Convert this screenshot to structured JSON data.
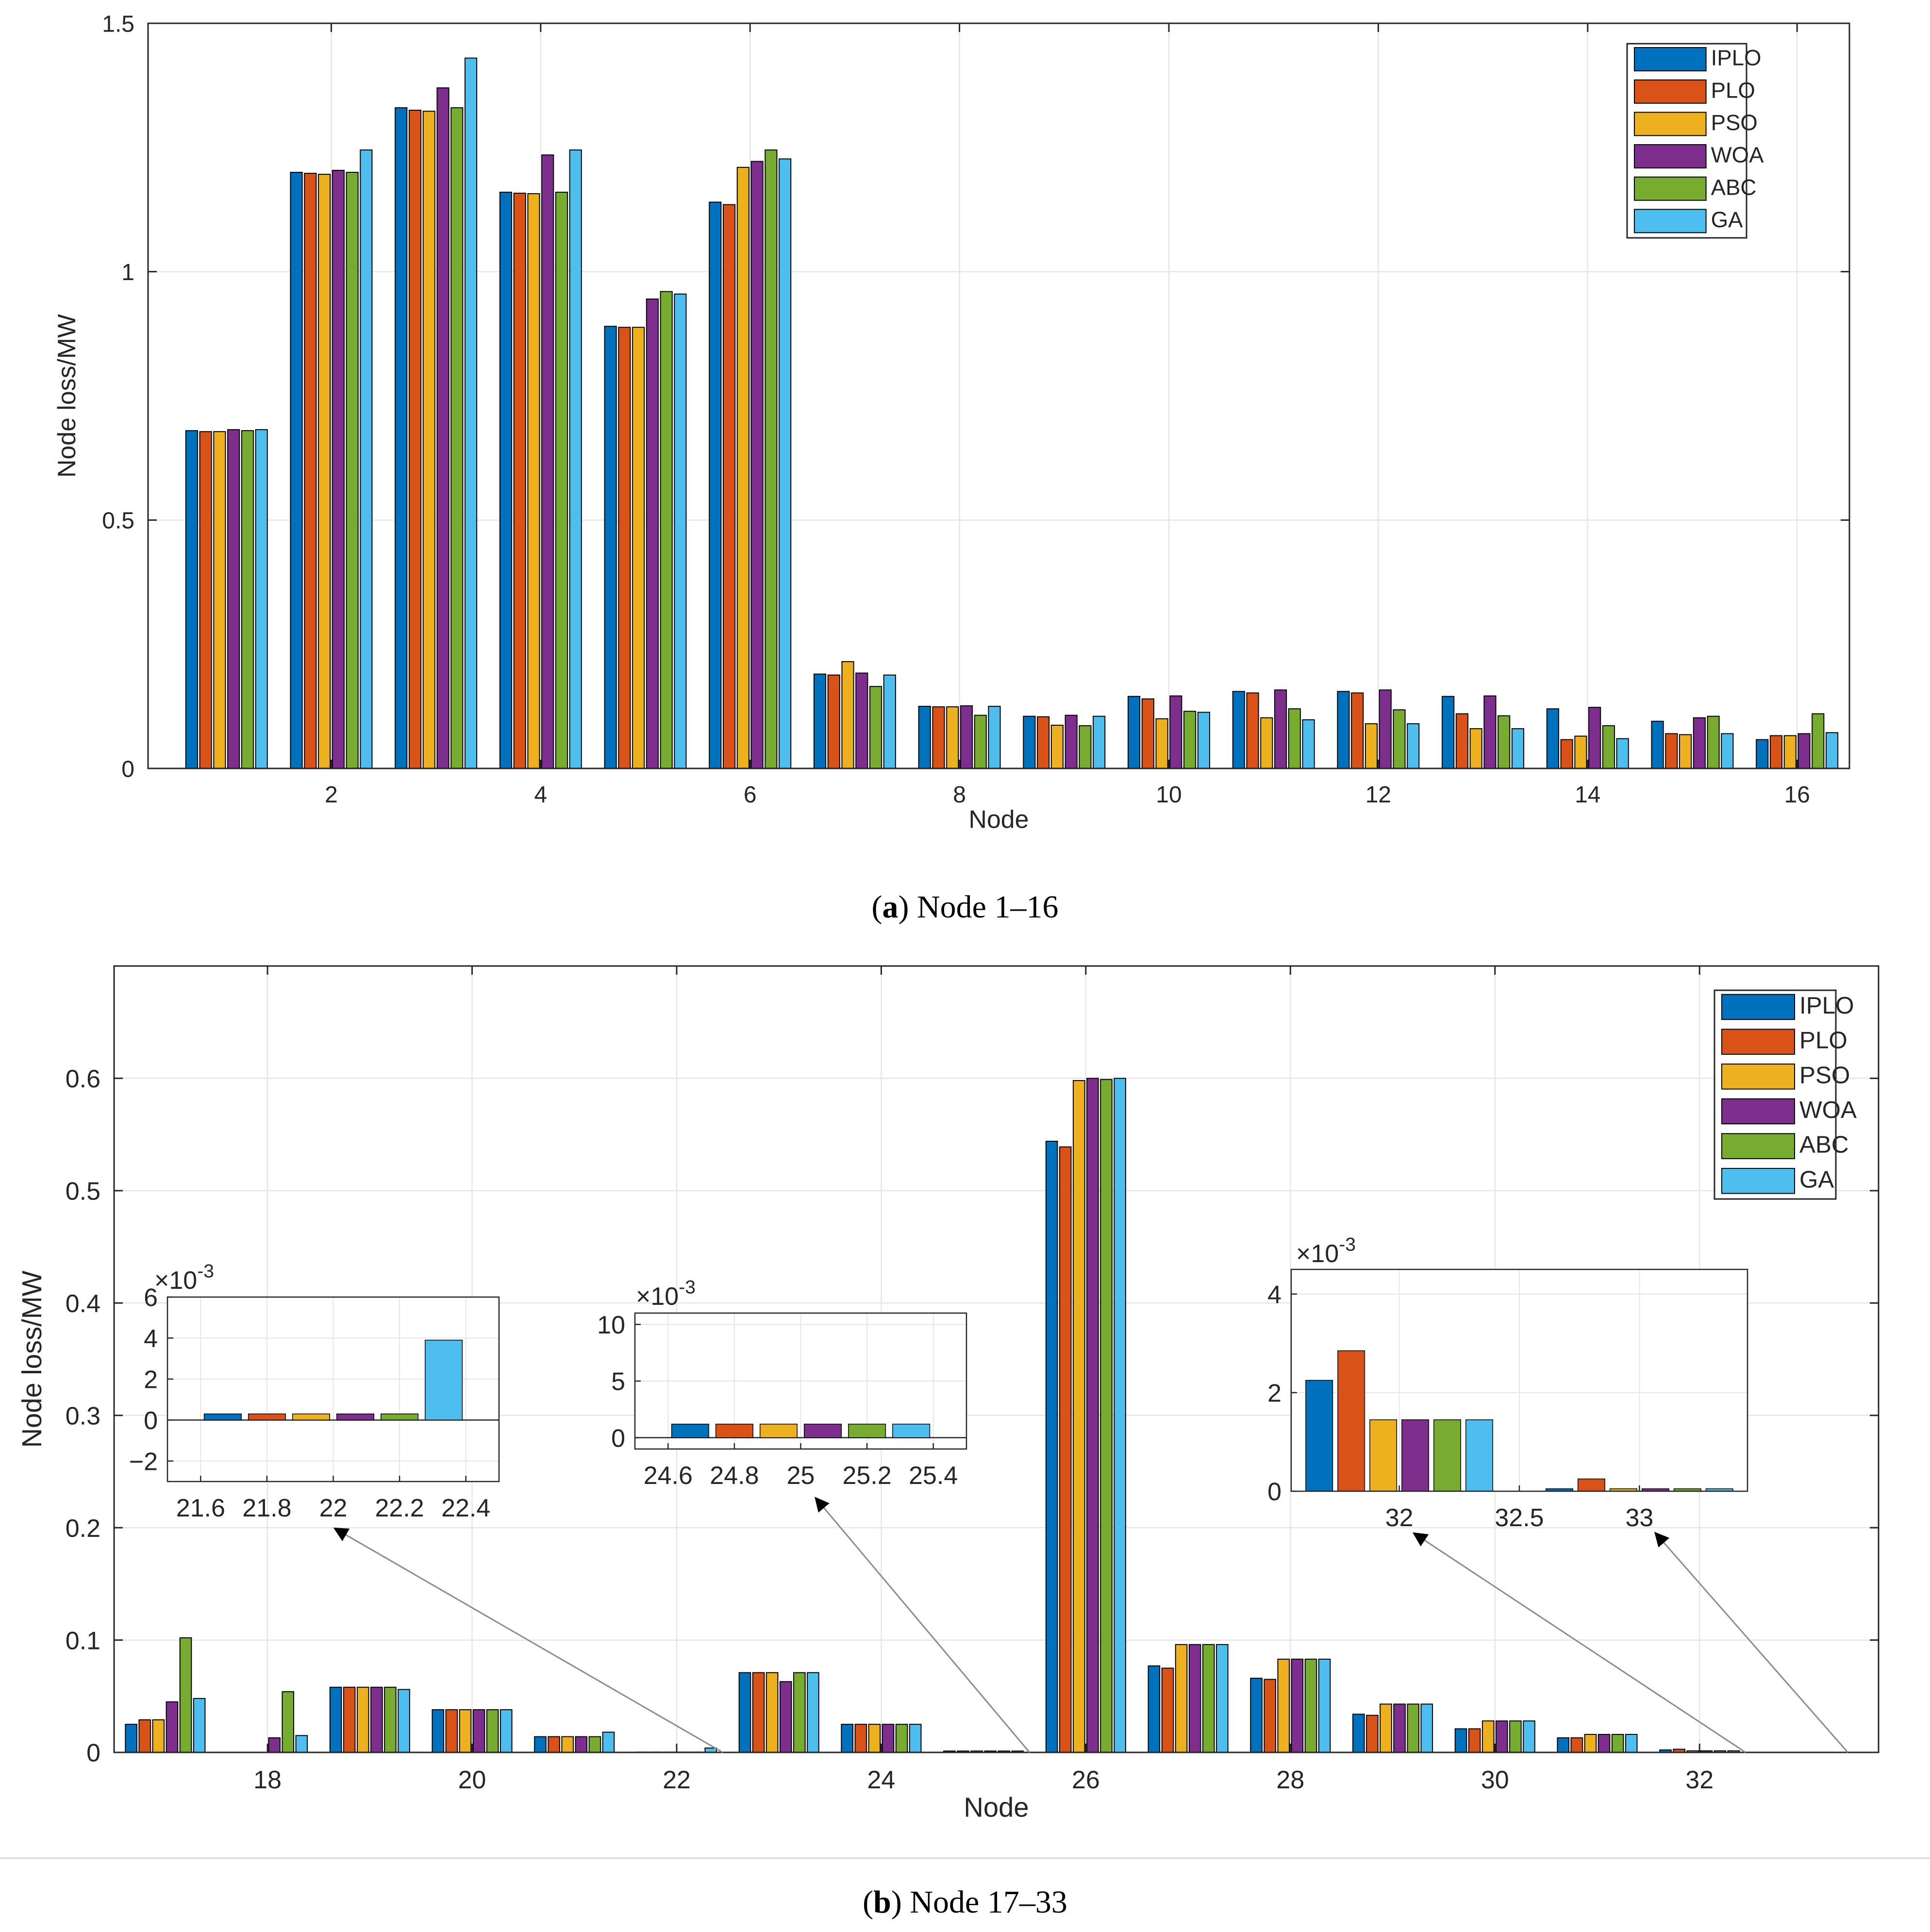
{
  "colors": {
    "IPLO": "#0072BD",
    "PLO": "#D95319",
    "PSO": "#EDB120",
    "WOA": "#7E2F8E",
    "ABC": "#77AC30",
    "GA": "#4DBEEE"
  },
  "captions": {
    "a_letter": "a",
    "a_text": "Node 1–16",
    "b_letter": "b",
    "b_text": "Node 17–33"
  },
  "chart_data": [
    {
      "id": "a",
      "type": "bar",
      "title": "",
      "xlabel": "Node",
      "ylabel": "Node loss/MW",
      "x": [
        1,
        2,
        3,
        4,
        5,
        6,
        7,
        8,
        9,
        10,
        11,
        12,
        13,
        14,
        15,
        16
      ],
      "xlim": [
        0.25,
        16.5
      ],
      "ylim": [
        0,
        1.5
      ],
      "yticks": [
        0,
        0.5,
        1,
        1.5
      ],
      "ytick_labels": [
        "0",
        "0.5",
        "1",
        "1.5"
      ],
      "xticks": [
        2,
        4,
        6,
        8,
        10,
        12,
        14,
        16
      ],
      "xtick_labels": [
        "2",
        "4",
        "6",
        "8",
        "10",
        "12",
        "14",
        "16"
      ],
      "grid": true,
      "legend_position": "top-right",
      "series": [
        {
          "name": "IPLO",
          "values": [
            0.68,
            1.2,
            1.33,
            1.16,
            0.89,
            1.14,
            0.19,
            0.125,
            0.105,
            0.145,
            0.155,
            0.155,
            0.145,
            0.12,
            0.095,
            0.058
          ]
        },
        {
          "name": "PLO",
          "values": [
            0.678,
            1.198,
            1.325,
            1.158,
            0.888,
            1.135,
            0.188,
            0.124,
            0.104,
            0.14,
            0.152,
            0.152,
            0.11,
            0.058,
            0.07,
            0.066
          ]
        },
        {
          "name": "PSO",
          "values": [
            0.678,
            1.196,
            1.323,
            1.157,
            0.888,
            1.21,
            0.215,
            0.124,
            0.087,
            0.1,
            0.102,
            0.09,
            0.08,
            0.065,
            0.068,
            0.066
          ]
        },
        {
          "name": "WOA",
          "values": [
            0.682,
            1.204,
            1.37,
            1.235,
            0.945,
            1.222,
            0.192,
            0.126,
            0.107,
            0.146,
            0.158,
            0.158,
            0.146,
            0.123,
            0.102,
            0.07
          ]
        },
        {
          "name": "ABC",
          "values": [
            0.68,
            1.2,
            1.33,
            1.16,
            0.96,
            1.245,
            0.165,
            0.107,
            0.086,
            0.115,
            0.12,
            0.118,
            0.106,
            0.086,
            0.105,
            0.11
          ]
        },
        {
          "name": "GA",
          "values": [
            0.682,
            1.245,
            1.43,
            1.245,
            0.955,
            1.227,
            0.188,
            0.125,
            0.105,
            0.113,
            0.098,
            0.09,
            0.08,
            0.06,
            0.07,
            0.072
          ]
        }
      ]
    },
    {
      "id": "b",
      "type": "bar",
      "title": "",
      "xlabel": "Node",
      "ylabel": "Node loss/MW",
      "x": [
        17,
        18,
        19,
        20,
        21,
        22,
        23,
        24,
        25,
        26,
        27,
        28,
        29,
        30,
        31,
        32,
        33
      ],
      "xlim": [
        16.5,
        33.75
      ],
      "ylim": [
        0,
        0.7
      ],
      "yticks": [
        0,
        0.1,
        0.2,
        0.3,
        0.4,
        0.5,
        0.6
      ],
      "ytick_labels": [
        "0",
        "0.1",
        "0.2",
        "0.3",
        "0.4",
        "0.5",
        "0.6"
      ],
      "xticks": [
        18,
        20,
        22,
        24,
        26,
        28,
        30,
        32
      ],
      "xtick_labels": [
        "18",
        "20",
        "22",
        "24",
        "26",
        "28",
        "30",
        "32"
      ],
      "grid": true,
      "legend_position": "top-right",
      "series": [
        {
          "name": "IPLO",
          "values": [
            0.025,
            0.0,
            0.058,
            0.038,
            0.014,
            0.0003,
            0.071,
            0.025,
            0.0012,
            0.544,
            0.077,
            0.066,
            0.034,
            0.021,
            0.013,
            0.0022,
            5e-05
          ]
        },
        {
          "name": "PLO",
          "values": [
            0.029,
            0.0,
            0.058,
            0.038,
            0.014,
            0.0003,
            0.071,
            0.025,
            0.0012,
            0.539,
            0.075,
            0.065,
            0.033,
            0.021,
            0.013,
            0.0028,
            0.0002
          ]
        },
        {
          "name": "PSO",
          "values": [
            0.029,
            0.0,
            0.058,
            0.038,
            0.014,
            0.0003,
            0.071,
            0.025,
            0.0012,
            0.598,
            0.096,
            0.083,
            0.043,
            0.028,
            0.016,
            0.0014,
            5e-05
          ]
        },
        {
          "name": "WOA",
          "values": [
            0.045,
            0.013,
            0.058,
            0.038,
            0.014,
            0.0003,
            0.063,
            0.025,
            0.0012,
            0.6,
            0.096,
            0.083,
            0.043,
            0.028,
            0.016,
            0.0014,
            5e-05
          ]
        },
        {
          "name": "ABC",
          "values": [
            0.102,
            0.054,
            0.058,
            0.038,
            0.014,
            0.0003,
            0.071,
            0.025,
            0.0012,
            0.599,
            0.096,
            0.083,
            0.043,
            0.028,
            0.016,
            0.0014,
            5e-05
          ]
        },
        {
          "name": "GA",
          "values": [
            0.048,
            0.015,
            0.056,
            0.038,
            0.018,
            0.0039,
            0.071,
            0.025,
            0.0012,
            0.6,
            0.096,
            0.083,
            0.043,
            0.028,
            0.016,
            0.0014,
            5e-05
          ]
        }
      ],
      "insets": [
        {
          "id": "inset-node22",
          "exponent_base": "×10",
          "exponent_power": "-3",
          "xlim": [
            21.5,
            22.5
          ],
          "ylim": [
            -3,
            6
          ],
          "yticks": [
            -2,
            0,
            2,
            4,
            6
          ],
          "ytick_labels": [
            "−2",
            "0",
            "2",
            "4",
            "6"
          ],
          "xticks": [
            21.6,
            21.8,
            22,
            22.2,
            22.4
          ],
          "xtick_labels": [
            "21.6",
            "21.8",
            "22",
            "22.2",
            "22.4"
          ],
          "x": [
            22
          ],
          "series_values": [
            [
              0.3
            ],
            [
              0.3
            ],
            [
              0.3
            ],
            [
              0.3
            ],
            [
              0.3
            ],
            [
              3.9
            ]
          ],
          "pointer_target_node": 22
        },
        {
          "id": "inset-node25",
          "exponent_base": "×10",
          "exponent_power": "-3",
          "xlim": [
            24.5,
            25.5
          ],
          "ylim": [
            -1,
            11
          ],
          "yticks": [
            0,
            5,
            10
          ],
          "ytick_labels": [
            "0",
            "5",
            "10"
          ],
          "xticks": [
            24.6,
            24.8,
            25,
            25.2,
            25.4
          ],
          "xtick_labels": [
            "24.6",
            "24.8",
            "25",
            "25.2",
            "25.4"
          ],
          "x": [
            25
          ],
          "series_values": [
            [
              1.2
            ],
            [
              1.2
            ],
            [
              1.2
            ],
            [
              1.2
            ],
            [
              1.2
            ],
            [
              1.2
            ]
          ],
          "pointer_target_node": 25
        },
        {
          "id": "inset-node32-33",
          "exponent_base": "×10",
          "exponent_power": "-3",
          "xlim": [
            31.55,
            33.45
          ],
          "ylim": [
            0,
            4.5
          ],
          "yticks": [
            0,
            2,
            4
          ],
          "ytick_labels": [
            "0",
            "2",
            "4"
          ],
          "xticks": [
            32,
            32.5,
            33
          ],
          "xtick_labels": [
            "32",
            "32.5",
            "33"
          ],
          "x": [
            32,
            33
          ],
          "series_values": [
            [
              2.25,
              0.05
            ],
            [
              2.85,
              0.25
            ],
            [
              1.45,
              0.05
            ],
            [
              1.45,
              0.05
            ],
            [
              1.45,
              0.05
            ],
            [
              1.45,
              0.05
            ]
          ],
          "pointer_target_nodes": [
            32,
            33
          ]
        }
      ]
    }
  ]
}
